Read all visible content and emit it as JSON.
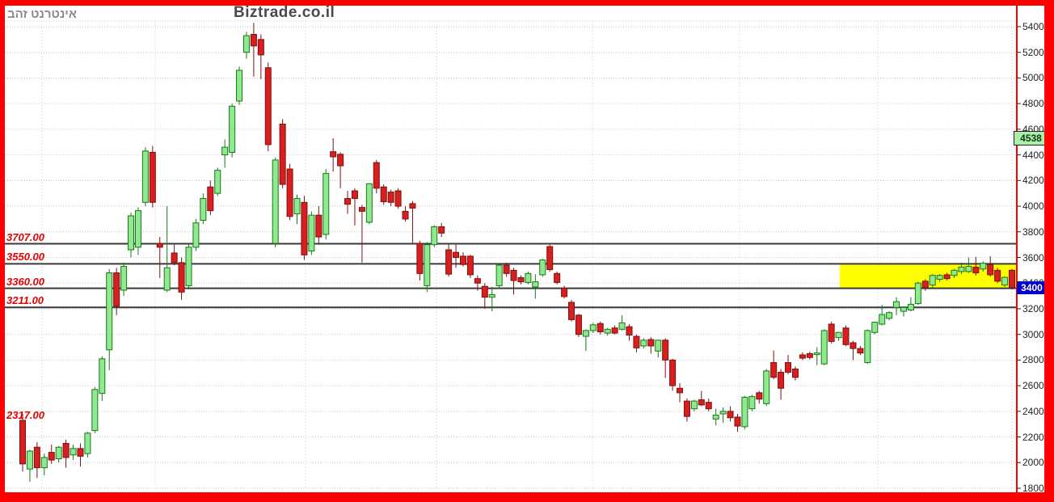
{
  "header": {
    "ticker": "אינטרנט זהב",
    "brand": "Biztrade.co.il"
  },
  "chart_data": {
    "type": "candlestick",
    "title": "אינטרנט זהב",
    "watermark": "Biztrade.co.il",
    "y_axis": {
      "min": 1800,
      "max": 5400,
      "tick_step": 200,
      "ticks": [
        5400,
        5200,
        5000,
        4800,
        4600,
        4400,
        4200,
        4000,
        3800,
        3600,
        3400,
        3200,
        3000,
        2800,
        2600,
        2400,
        2200,
        2000,
        1800
      ],
      "grid": true
    },
    "x_axis": {
      "labels": [],
      "grid": true
    },
    "levels": [
      {
        "label": "3707.00",
        "price": 3707,
        "line": true
      },
      {
        "label": "3550.00",
        "price": 3550,
        "line": true
      },
      {
        "label": "3360.00",
        "price": 3360,
        "line": true
      },
      {
        "label": "3211.00",
        "price": 3211,
        "line": true
      },
      {
        "label": "2317.00",
        "price": 2317,
        "line": false
      }
    ],
    "highlight_zone": {
      "top_price": 3550,
      "bottom_price": 3360,
      "x_start_ratio": 0.825,
      "color": "#ffff00"
    },
    "badges": [
      {
        "value": "4538",
        "price": 4538,
        "style": "green"
      },
      {
        "value": "3400",
        "price": 3375,
        "style": "blue"
      }
    ],
    "candles": [
      [
        2330,
        2380,
        1930,
        1990
      ],
      [
        1950,
        2100,
        1850,
        2090
      ],
      [
        2120,
        2160,
        1880,
        1960
      ],
      [
        1960,
        2070,
        1900,
        2040
      ],
      [
        2080,
        2140,
        1990,
        2020
      ],
      [
        2030,
        2130,
        2000,
        2120
      ],
      [
        2150,
        2180,
        1960,
        2040
      ],
      [
        2060,
        2140,
        2020,
        2110
      ],
      [
        2110,
        2150,
        1970,
        2050
      ],
      [
        2070,
        2240,
        2040,
        2230
      ],
      [
        2250,
        2590,
        2230,
        2570
      ],
      [
        2540,
        2830,
        2480,
        2810
      ],
      [
        2880,
        3510,
        2720,
        3480
      ],
      [
        3480,
        3520,
        3150,
        3220
      ],
      [
        3345,
        3560,
        3300,
        3530
      ],
      [
        3660,
        3950,
        3600,
        3925
      ],
      [
        3680,
        3990,
        3620,
        3965
      ],
      [
        4030,
        4460,
        4000,
        4430
      ],
      [
        4420,
        4470,
        3990,
        4030
      ],
      [
        3710,
        3760,
        3440,
        3680
      ],
      [
        3345,
        4000,
        3330,
        3520
      ],
      [
        3635,
        3700,
        3540,
        3560
      ],
      [
        3560,
        3600,
        3270,
        3330
      ],
      [
        3380,
        3700,
        3350,
        3680
      ],
      [
        3680,
        3900,
        3650,
        3870
      ],
      [
        3890,
        4100,
        3860,
        4060
      ],
      [
        4150,
        4200,
        3930,
        3965
      ],
      [
        4100,
        4300,
        4080,
        4280
      ],
      [
        4400,
        4520,
        4300,
        4460
      ],
      [
        4420,
        4800,
        4380,
        4780
      ],
      [
        4820,
        5090,
        4790,
        5060
      ],
      [
        5200,
        5360,
        5150,
        5330
      ],
      [
        5340,
        5430,
        5010,
        5250
      ],
      [
        5300,
        5340,
        4990,
        5180
      ],
      [
        5080,
        5120,
        4430,
        4480
      ],
      [
        3710,
        4380,
        3680,
        4360
      ],
      [
        4640,
        4680,
        4140,
        4170
      ],
      [
        4290,
        4330,
        3890,
        3920
      ],
      [
        3940,
        4090,
        3860,
        4060
      ],
      [
        4030,
        4080,
        3580,
        3620
      ],
      [
        3650,
        3960,
        3620,
        3930
      ],
      [
        3930,
        4000,
        3700,
        3760
      ],
      [
        3780,
        4290,
        3740,
        4255
      ],
      [
        4425,
        4530,
        4270,
        4385
      ],
      [
        4405,
        4420,
        4140,
        4315
      ],
      [
        4060,
        4120,
        3940,
        4015
      ],
      [
        4120,
        4140,
        3850,
        4060
      ],
      [
        3990,
        4010,
        3560,
        3960
      ],
      [
        3875,
        4180,
        3860,
        4175
      ],
      [
        4340,
        4360,
        4100,
        4140
      ],
      [
        4150,
        4170,
        4010,
        4035
      ],
      [
        4110,
        4130,
        4000,
        4030
      ],
      [
        4120,
        4140,
        3980,
        4000
      ],
      [
        3960,
        4000,
        3880,
        3900
      ],
      [
        4020,
        4040,
        3710,
        3985
      ],
      [
        3710,
        3730,
        3420,
        3475
      ],
      [
        3380,
        3720,
        3330,
        3700
      ],
      [
        3700,
        3850,
        3680,
        3840
      ],
      [
        3840,
        3870,
        3760,
        3790
      ],
      [
        3660,
        3700,
        3450,
        3470
      ],
      [
        3640,
        3700,
        3520,
        3600
      ],
      [
        3610,
        3640,
        3530,
        3545
      ],
      [
        3610,
        3620,
        3440,
        3465
      ],
      [
        3435,
        3460,
        3340,
        3400
      ],
      [
        3375,
        3400,
        3200,
        3290
      ],
      [
        3290,
        3370,
        3180,
        3310
      ],
      [
        3380,
        3550,
        3360,
        3540
      ],
      [
        3540,
        3560,
        3450,
        3475
      ],
      [
        3500,
        3520,
        3310,
        3420
      ],
      [
        3443,
        3460,
        3390,
        3410
      ],
      [
        3405,
        3490,
        3390,
        3475
      ],
      [
        3370,
        3470,
        3280,
        3410
      ],
      [
        3465,
        3590,
        3450,
        3580
      ],
      [
        3685,
        3700,
        3490,
        3505
      ],
      [
        3475,
        3490,
        3390,
        3405
      ],
      [
        3360,
        3380,
        3280,
        3295
      ],
      [
        3250,
        3270,
        3100,
        3115
      ],
      [
        3150,
        3160,
        2980,
        3000
      ],
      [
        2985,
        3040,
        2870,
        3030
      ],
      [
        3030,
        3090,
        3010,
        3075
      ],
      [
        3085,
        3100,
        3000,
        3020
      ],
      [
        3010,
        3050,
        2990,
        3040
      ],
      [
        3050,
        3070,
        3000,
        3010
      ],
      [
        3040,
        3150,
        3030,
        3090
      ],
      [
        3060,
        3080,
        2950,
        2995
      ],
      [
        2985,
        3000,
        2860,
        2895
      ],
      [
        2910,
        2970,
        2890,
        2955
      ],
      [
        2960,
        2980,
        2850,
        2910
      ],
      [
        2870,
        2960,
        2820,
        2955
      ],
      [
        2955,
        2970,
        2660,
        2800
      ],
      [
        2800,
        2810,
        2560,
        2600
      ],
      [
        2580,
        2620,
        2470,
        2545
      ],
      [
        2480,
        2500,
        2320,
        2360
      ],
      [
        2420,
        2490,
        2400,
        2480
      ],
      [
        2490,
        2560,
        2440,
        2450
      ],
      [
        2470,
        2500,
        2400,
        2420
      ],
      [
        2340,
        2420,
        2290,
        2370
      ],
      [
        2380,
        2430,
        2310,
        2400
      ],
      [
        2400,
        2440,
        2320,
        2350
      ],
      [
        2355,
        2380,
        2240,
        2285
      ],
      [
        2280,
        2520,
        2260,
        2510
      ],
      [
        2420,
        2530,
        2400,
        2515
      ],
      [
        2545,
        2560,
        2460,
        2495
      ],
      [
        2460,
        2730,
        2440,
        2715
      ],
      [
        2780,
        2875,
        2650,
        2665
      ],
      [
        2705,
        2730,
        2490,
        2580
      ],
      [
        2780,
        2840,
        2690,
        2705
      ],
      [
        2730,
        2750,
        2640,
        2665
      ],
      [
        2840,
        2860,
        2800,
        2815
      ],
      [
        2850,
        2865,
        2805,
        2820
      ],
      [
        2845,
        2900,
        2760,
        2855
      ],
      [
        2770,
        3040,
        2760,
        3030
      ],
      [
        3080,
        3100,
        2930,
        2945
      ],
      [
        2975,
        3020,
        2950,
        3015
      ],
      [
        3050,
        3070,
        2910,
        2920
      ],
      [
        2935,
        2950,
        2800,
        2890
      ],
      [
        2890,
        2910,
        2840,
        2855
      ],
      [
        2780,
        3040,
        2770,
        3030
      ],
      [
        3015,
        3100,
        3000,
        3095
      ],
      [
        3080,
        3230,
        3070,
        3155
      ],
      [
        3125,
        3180,
        3110,
        3170
      ],
      [
        3210,
        3290,
        3150,
        3255
      ],
      [
        3180,
        3220,
        3140,
        3210
      ],
      [
        3190,
        3290,
        3180,
        3235
      ],
      [
        3240,
        3410,
        3230,
        3400
      ],
      [
        3415,
        3430,
        3340,
        3365
      ],
      [
        3385,
        3470,
        3360,
        3460
      ],
      [
        3430,
        3470,
        3410,
        3460
      ],
      [
        3465,
        3480,
        3420,
        3435
      ],
      [
        3460,
        3510,
        3440,
        3500
      ],
      [
        3490,
        3560,
        3470,
        3525
      ],
      [
        3490,
        3600,
        3480,
        3530
      ],
      [
        3525,
        3605,
        3460,
        3480
      ],
      [
        3510,
        3570,
        3490,
        3555
      ],
      [
        3545,
        3610,
        3450,
        3465
      ],
      [
        3500,
        3520,
        3400,
        3415
      ],
      [
        3385,
        3450,
        3370,
        3445
      ],
      [
        3500,
        3510,
        3350,
        3365
      ]
    ]
  },
  "colors": {
    "candle_up_fill": "#90e890",
    "candle_up_stroke": "#177917",
    "candle_down_fill": "#d81e1e",
    "candle_down_stroke": "#7d1111",
    "grid": "#c9c9c9",
    "level_line": "#3a3a3a",
    "level_label": "#e60000",
    "highlight": "#ffff00",
    "axis_text": "#222222",
    "axis_divider": "#ff0000",
    "frame": "#ff0000",
    "badge_green_bg": "#aceeac",
    "badge_blue_bg": "#0000c8",
    "title": "#8a8a8a",
    "brand": "#4a4a4a"
  }
}
